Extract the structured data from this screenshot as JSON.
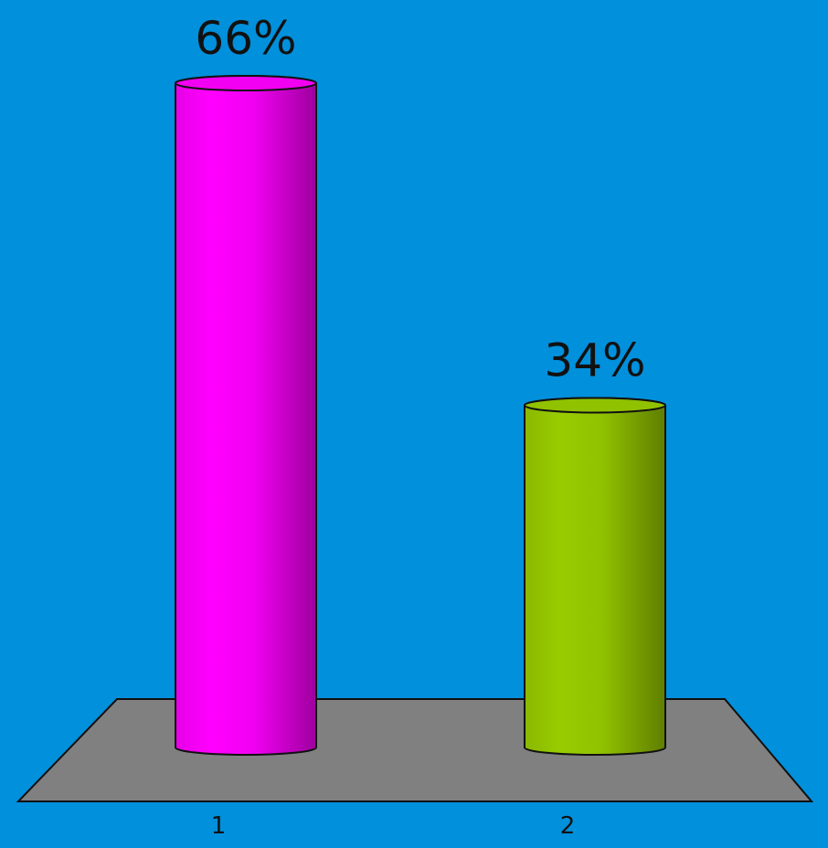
{
  "chart_data": {
    "type": "bar",
    "style": "3d-cylinder",
    "categories": [
      "1",
      "2"
    ],
    "values": [
      66,
      34
    ],
    "data_labels": [
      "66%",
      "34%"
    ],
    "value_unit": "%",
    "ylim": [
      0,
      66
    ],
    "grid": false,
    "legend": "none",
    "title": "",
    "xlabel": "",
    "ylabel": ""
  },
  "colors": {
    "background": "#0090dc",
    "floor": "#808080",
    "bar_1": "#ff00ff",
    "bar_2": "#99cc00",
    "text": "#111111"
  }
}
